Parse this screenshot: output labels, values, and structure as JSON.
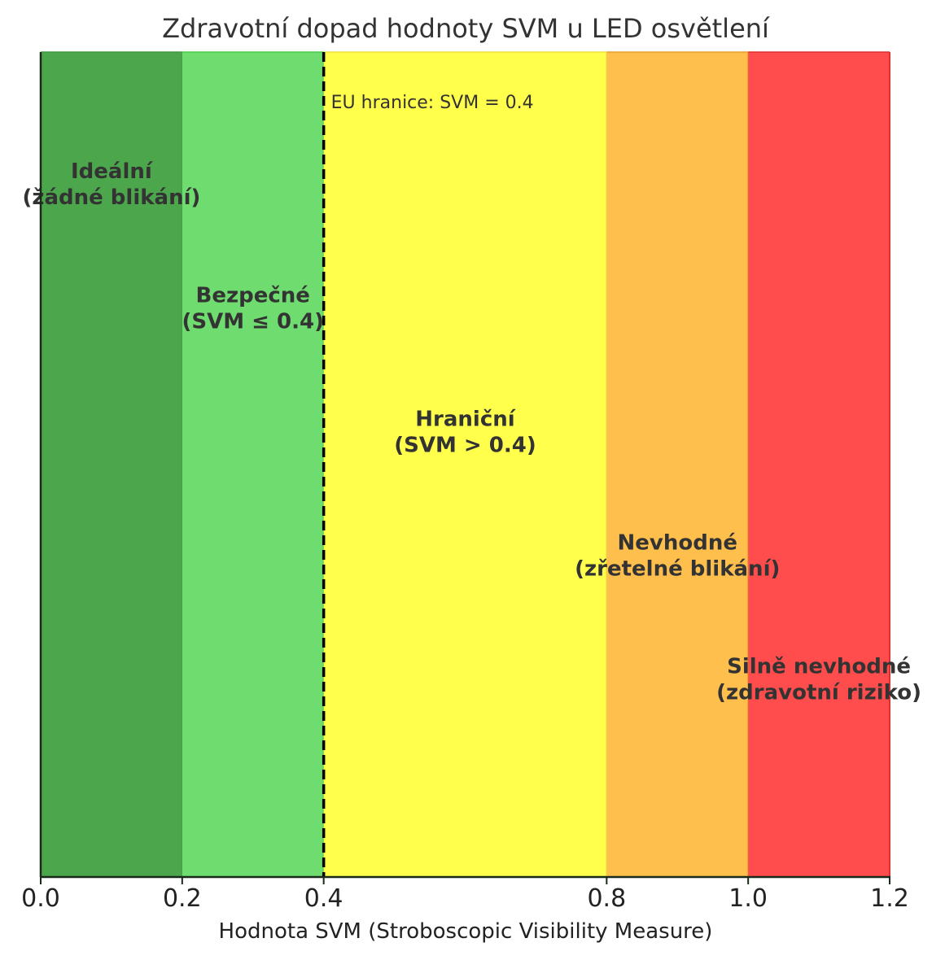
{
  "chart_data": {
    "type": "bar",
    "title": "Zdravotní dopad hodnoty SVM u LED osvětlení",
    "xlabel": "Hodnota SVM (Stroboscopic Visibility Measure)",
    "ylabel": "",
    "xlim": [
      0.0,
      1.2
    ],
    "ylim": [
      0,
      1
    ],
    "x_ticks": [
      0.0,
      0.2,
      0.4,
      0.8,
      1.0,
      1.2
    ],
    "x_tick_labels": [
      "0.0",
      "0.2",
      "0.4",
      "0.8",
      "1.0",
      "1.2"
    ],
    "y_ticks_visible": false,
    "grid": false,
    "zones": [
      {
        "x_start": 0.0,
        "x_end": 0.2,
        "color": "#4CA64C",
        "edge_color": "#3e9a3e",
        "label_lines": [
          "Ideální",
          "(žádné blikání)"
        ],
        "label_y": 0.84
      },
      {
        "x_start": 0.2,
        "x_end": 0.4,
        "color": "#6FDC6F",
        "edge_color": "#4cc94c",
        "label_lines": [
          "Bezpečné",
          "(SVM ≤ 0.4)"
        ],
        "label_y": 0.69
      },
      {
        "x_start": 0.4,
        "x_end": 0.8,
        "color": "#FFFF4C",
        "edge_color": "#f0e03c",
        "label_lines": [
          "Hraniční",
          "(SVM > 0.4)"
        ],
        "label_y": 0.54
      },
      {
        "x_start": 0.8,
        "x_end": 1.0,
        "color": "#FFBF4C",
        "edge_color": "#e6a030",
        "label_lines": [
          "Nevhodné",
          "(zřetelné blikání)"
        ],
        "label_y": 0.39
      },
      {
        "x_start": 1.0,
        "x_end": 1.2,
        "color": "#FF4C4C",
        "edge_color": "#dd3030",
        "label_lines": [
          "Silně nevhodné",
          "(zdravotní riziko)"
        ],
        "label_y": 0.24
      }
    ],
    "threshold": {
      "x": 0.4,
      "style": "dashed",
      "color": "#000000",
      "label": "EU hranice: SVM = 0.4",
      "label_y": 0.94
    }
  }
}
